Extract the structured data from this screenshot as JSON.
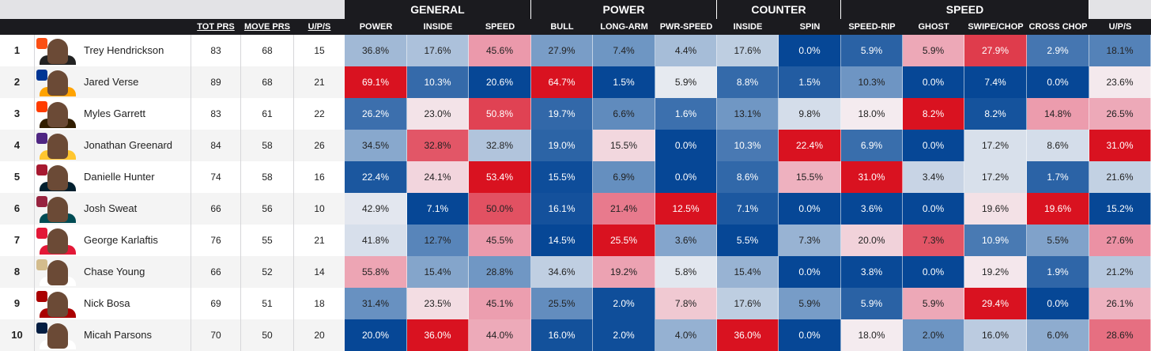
{
  "groups": [
    "GENERAL",
    "POWER",
    "COUNTER",
    "SPEED"
  ],
  "headers": {
    "tot": "TOT PRS",
    "move": "MOVE PRS",
    "ups": "U/P/S",
    "metrics": [
      "POWER",
      "INSIDE",
      "SPEED",
      "BULL",
      "LONG-ARM",
      "PWR-SPEED",
      "INSIDE",
      "SPIN",
      "SPEED-RIP",
      "GHOST",
      "SWIPE/CHOP",
      "CROSS CHOP",
      "U/P/S"
    ]
  },
  "rows": [
    {
      "rank": "1",
      "name": "Trey Hendrickson",
      "team_color": "#fb4f14",
      "helmet_color": "#222222",
      "tot": "83",
      "move": "68",
      "ups": "15",
      "values": [
        "36.8%",
        "17.6%",
        "45.6%",
        "27.9%",
        "7.4%",
        "4.4%",
        "17.6%",
        "0.0%",
        "5.9%",
        "5.9%",
        "27.9%",
        "2.9%",
        "18.1%"
      ]
    },
    {
      "rank": "2",
      "name": "Jared Verse",
      "team_color": "#003594",
      "helmet_color": "#ffa300",
      "tot": "89",
      "move": "68",
      "ups": "21",
      "values": [
        "69.1%",
        "10.3%",
        "20.6%",
        "64.7%",
        "1.5%",
        "5.9%",
        "8.8%",
        "1.5%",
        "10.3%",
        "0.0%",
        "7.4%",
        "0.0%",
        "23.6%"
      ]
    },
    {
      "rank": "3",
      "name": "Myles Garrett",
      "team_color": "#ff3c00",
      "helmet_color": "#311d00",
      "tot": "83",
      "move": "61",
      "ups": "22",
      "values": [
        "26.2%",
        "23.0%",
        "50.8%",
        "19.7%",
        "6.6%",
        "1.6%",
        "13.1%",
        "9.8%",
        "18.0%",
        "8.2%",
        "8.2%",
        "14.8%",
        "26.5%"
      ]
    },
    {
      "rank": "4",
      "name": "Jonathan Greenard",
      "team_color": "#4f2683",
      "helmet_color": "#ffc62f",
      "tot": "84",
      "move": "58",
      "ups": "26",
      "values": [
        "34.5%",
        "32.8%",
        "32.8%",
        "19.0%",
        "15.5%",
        "0.0%",
        "10.3%",
        "22.4%",
        "6.9%",
        "0.0%",
        "17.2%",
        "8.6%",
        "31.0%"
      ]
    },
    {
      "rank": "5",
      "name": "Danielle Hunter",
      "team_color": "#a71930",
      "helmet_color": "#03202f",
      "tot": "74",
      "move": "58",
      "ups": "16",
      "values": [
        "22.4%",
        "24.1%",
        "53.4%",
        "15.5%",
        "6.9%",
        "0.0%",
        "8.6%",
        "15.5%",
        "31.0%",
        "3.4%",
        "17.2%",
        "1.7%",
        "21.6%"
      ]
    },
    {
      "rank": "6",
      "name": "Josh Sweat",
      "team_color": "#97233f",
      "helmet_color": "#004c54",
      "tot": "66",
      "move": "56",
      "ups": "10",
      "values": [
        "42.9%",
        "7.1%",
        "50.0%",
        "16.1%",
        "21.4%",
        "12.5%",
        "7.1%",
        "0.0%",
        "3.6%",
        "0.0%",
        "19.6%",
        "19.6%",
        "15.2%"
      ]
    },
    {
      "rank": "7",
      "name": "George Karlaftis",
      "team_color": "#e31837",
      "helmet_color": "#e31837",
      "tot": "76",
      "move": "55",
      "ups": "21",
      "values": [
        "41.8%",
        "12.7%",
        "45.5%",
        "14.5%",
        "25.5%",
        "3.6%",
        "5.5%",
        "7.3%",
        "20.0%",
        "7.3%",
        "10.9%",
        "5.5%",
        "27.6%"
      ]
    },
    {
      "rank": "8",
      "name": "Chase Young",
      "team_color": "#d3bc8d",
      "helmet_color": "#ffffff",
      "tot": "66",
      "move": "52",
      "ups": "14",
      "values": [
        "55.8%",
        "15.4%",
        "28.8%",
        "34.6%",
        "19.2%",
        "5.8%",
        "15.4%",
        "0.0%",
        "3.8%",
        "0.0%",
        "19.2%",
        "1.9%",
        "21.2%"
      ]
    },
    {
      "rank": "9",
      "name": "Nick Bosa",
      "team_color": "#aa0000",
      "helmet_color": "#aa0000",
      "tot": "69",
      "move": "51",
      "ups": "18",
      "values": [
        "31.4%",
        "23.5%",
        "45.1%",
        "25.5%",
        "2.0%",
        "7.8%",
        "17.6%",
        "5.9%",
        "5.9%",
        "5.9%",
        "29.4%",
        "0.0%",
        "26.1%"
      ]
    },
    {
      "rank": "10",
      "name": "Micah Parsons",
      "team_color": "#041e42",
      "helmet_color": "#ffffff",
      "tot": "70",
      "move": "50",
      "ups": "20",
      "values": [
        "20.0%",
        "36.0%",
        "44.0%",
        "16.0%",
        "2.0%",
        "4.0%",
        "36.0%",
        "0.0%",
        "18.0%",
        "2.0%",
        "16.0%",
        "6.0%",
        "28.6%"
      ]
    }
  ]
}
